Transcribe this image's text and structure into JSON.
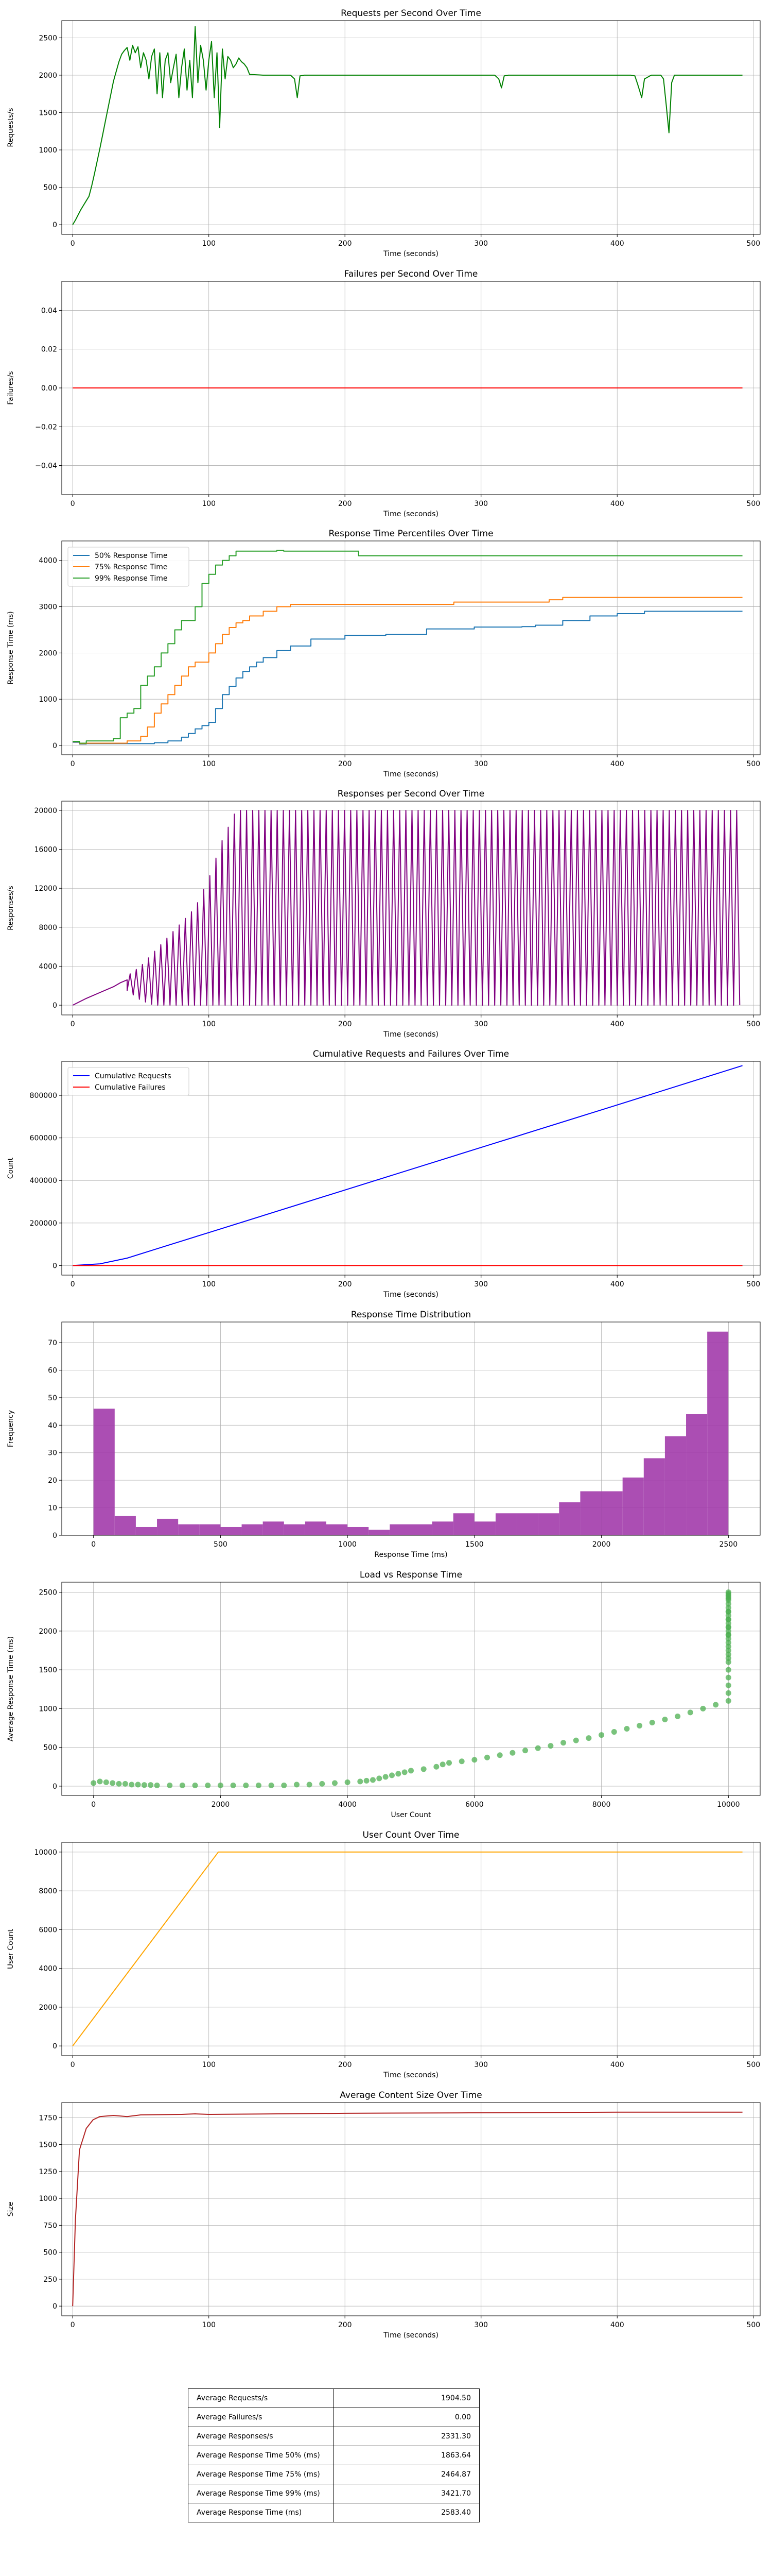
{
  "chart_data": [
    {
      "type": "line",
      "title": "Requests per Second Over Time",
      "xlabel": "Time (seconds)",
      "ylabel": "Requests/s",
      "xlim": [
        -8,
        505
      ],
      "ylim": [
        -130,
        2730
      ],
      "xticks": [
        0,
        100,
        200,
        300,
        400,
        500
      ],
      "yticks": [
        0,
        500,
        1000,
        1500,
        2000,
        2500
      ],
      "grid": true,
      "series": [
        {
          "color": "#008000",
          "x": [
            0,
            2,
            4,
            6,
            8,
            10,
            12,
            14,
            16,
            18,
            20,
            22,
            24,
            26,
            28,
            30,
            32,
            34,
            36,
            38,
            40,
            42,
            44,
            46,
            48,
            50,
            52,
            54,
            56,
            58,
            60,
            62,
            64,
            66,
            68,
            70,
            72,
            74,
            76,
            78,
            80,
            82,
            84,
            86,
            88,
            90,
            92,
            94,
            96,
            98,
            100,
            102,
            104,
            106,
            108,
            110,
            112,
            114,
            116,
            118,
            120,
            122,
            124,
            126,
            128,
            130,
            140,
            150,
            160,
            163,
            165,
            167,
            170,
            180,
            200,
            250,
            300,
            310,
            313,
            315,
            317,
            320,
            350,
            400,
            410,
            413,
            415,
            418,
            420,
            425,
            430,
            432,
            434,
            436,
            438,
            440,
            442,
            445,
            450,
            470,
            492
          ],
          "y": [
            0,
            60,
            130,
            200,
            260,
            320,
            380,
            520,
            680,
            850,
            1020,
            1200,
            1380,
            1560,
            1740,
            1920,
            2050,
            2180,
            2280,
            2330,
            2370,
            2200,
            2400,
            2300,
            2380,
            2100,
            2300,
            2200,
            1950,
            2250,
            2350,
            1750,
            2300,
            1700,
            2200,
            2300,
            1900,
            2100,
            2280,
            1700,
            2100,
            2350,
            1800,
            2200,
            1700,
            2650,
            1900,
            2400,
            2200,
            1800,
            2200,
            2450,
            1700,
            2300,
            1300,
            2350,
            1950,
            2250,
            2200,
            2100,
            2150,
            2230,
            2180,
            2150,
            2100,
            2010,
            2000,
            2000,
            2000,
            1950,
            1700,
            1990,
            2000,
            2000,
            2000,
            2000,
            2000,
            2000,
            1950,
            1830,
            1990,
            2000,
            2000,
            2000,
            2000,
            1990,
            1880,
            1700,
            1950,
            2000,
            2000,
            2000,
            1950,
            1600,
            1230,
            1900,
            2000,
            2000,
            2000,
            2000,
            2000
          ]
        }
      ]
    },
    {
      "type": "line",
      "title": "Failures per Second Over Time",
      "xlabel": "Time (seconds)",
      "ylabel": "Failures/s",
      "xlim": [
        -8,
        505
      ],
      "ylim": [
        -0.055,
        0.055
      ],
      "xticks": [
        0,
        100,
        200,
        300,
        400,
        500
      ],
      "yticks": [
        -0.04,
        -0.02,
        0.0,
        0.02,
        0.04
      ],
      "ytick_labels": [
        "−0.04",
        "−0.02",
        "0.00",
        "0.02",
        "0.04"
      ],
      "grid": true,
      "series": [
        {
          "color": "#ff0000",
          "x": [
            0,
            492
          ],
          "y": [
            0,
            0
          ]
        }
      ]
    },
    {
      "type": "line",
      "title": "Response Time Percentiles Over Time",
      "xlabel": "Time (seconds)",
      "ylabel": "Response Time (ms)",
      "xlim": [
        -8,
        505
      ],
      "ylim": [
        -200,
        4420
      ],
      "xticks": [
        0,
        100,
        200,
        300,
        400,
        500
      ],
      "yticks": [
        0,
        1000,
        2000,
        3000,
        4000
      ],
      "grid": true,
      "legend": "upper left",
      "step": true,
      "series": [
        {
          "name": "50% Response Time",
          "color": "#1f77b4",
          "x": [
            0,
            5,
            10,
            20,
            40,
            60,
            70,
            80,
            85,
            90,
            95,
            100,
            105,
            110,
            115,
            120,
            125,
            130,
            135,
            140,
            150,
            160,
            175,
            200,
            230,
            260,
            290,
            295,
            310,
            330,
            340,
            360,
            380,
            400,
            420,
            492
          ],
          "y": [
            70,
            30,
            40,
            40,
            40,
            60,
            100,
            180,
            260,
            360,
            430,
            500,
            800,
            1100,
            1280,
            1460,
            1600,
            1700,
            1800,
            1900,
            2050,
            2150,
            2300,
            2380,
            2400,
            2520,
            2520,
            2560,
            2560,
            2570,
            2600,
            2700,
            2800,
            2850,
            2900,
            2900
          ]
        },
        {
          "name": "75% Response Time",
          "color": "#ff7f0e",
          "x": [
            0,
            5,
            10,
            30,
            40,
            50,
            55,
            60,
            65,
            70,
            75,
            80,
            85,
            90,
            100,
            105,
            110,
            115,
            120,
            125,
            130,
            140,
            150,
            160,
            200,
            280,
            320,
            350,
            360,
            380,
            400,
            420,
            492
          ],
          "y": [
            80,
            40,
            50,
            50,
            100,
            200,
            400,
            700,
            900,
            1100,
            1300,
            1500,
            1700,
            1800,
            2000,
            2200,
            2400,
            2550,
            2650,
            2700,
            2800,
            2900,
            3000,
            3050,
            3050,
            3100,
            3100,
            3150,
            3200,
            3200,
            3200,
            3200,
            3200
          ]
        },
        {
          "name": "99% Response Time",
          "color": "#2ca02c",
          "x": [
            0,
            5,
            10,
            30,
            35,
            40,
            45,
            50,
            55,
            60,
            65,
            70,
            75,
            80,
            90,
            95,
            100,
            105,
            110,
            115,
            120,
            150,
            155,
            210,
            250,
            300,
            400,
            492
          ],
          "y": [
            90,
            50,
            100,
            150,
            600,
            700,
            800,
            1300,
            1500,
            1700,
            2000,
            2200,
            2500,
            2700,
            3000,
            3500,
            3700,
            3900,
            4000,
            4100,
            4200,
            4220,
            4200,
            4100,
            4100,
            4100,
            4100,
            4100
          ]
        }
      ]
    },
    {
      "type": "line",
      "title": "Responses per Second Over Time",
      "xlabel": "Time (seconds)",
      "ylabel": "Responses/s",
      "xlim": [
        -8,
        505
      ],
      "ylim": [
        -1000,
        20950
      ],
      "xticks": [
        0,
        100,
        200,
        300,
        400,
        500
      ],
      "yticks": [
        0,
        4000,
        8000,
        12000,
        16000,
        20000
      ],
      "ytick_labels": [
        "0",
        "4000",
        "8000",
        "12000",
        "16000",
        "20000"
      ],
      "grid": true,
      "oscillating": true,
      "series": [
        {
          "color": "#800080",
          "ramp_x": [
            0,
            10,
            20,
            30,
            35,
            40
          ],
          "ramp_y": [
            0,
            700,
            1300,
            1900,
            2300,
            2600
          ],
          "oscillation_start": 40,
          "oscillation_end": 492,
          "period_seconds": 4.5,
          "envelope_x": [
            40,
            50,
            60,
            70,
            80,
            90,
            100,
            110,
            120,
            492
          ],
          "envelope_peak": [
            3000,
            4000,
            5500,
            7000,
            8500,
            10000,
            13000,
            17000,
            20000,
            20000
          ],
          "envelope_trough": [
            1500,
            500,
            0,
            0,
            0,
            0,
            0,
            0,
            0,
            0
          ]
        }
      ]
    },
    {
      "type": "line",
      "title": "Cumulative Requests and Failures Over Time",
      "xlabel": "Time (seconds)",
      "ylabel": "Count",
      "xlim": [
        -8,
        505
      ],
      "ylim": [
        -45000,
        960000
      ],
      "xticks": [
        0,
        100,
        200,
        300,
        400,
        500
      ],
      "yticks": [
        0,
        200000,
        400000,
        600000,
        800000
      ],
      "grid": true,
      "legend": "upper left",
      "series": [
        {
          "name": "Cumulative Requests",
          "color": "#0000ff",
          "x": [
            0,
            20,
            40,
            60,
            80,
            100,
            200,
            300,
            400,
            492
          ],
          "y": [
            0,
            8000,
            35000,
            75000,
            115000,
            155000,
            355000,
            555000,
            755000,
            940000
          ]
        },
        {
          "name": "Cumulative Failures",
          "color": "#ff0000",
          "x": [
            0,
            492
          ],
          "y": [
            0,
            0
          ]
        }
      ]
    },
    {
      "type": "bar",
      "title": "Response Time Distribution",
      "xlabel": "Response Time (ms)",
      "ylabel": "Frequency",
      "xlim": [
        -125,
        2625
      ],
      "ylim": [
        0,
        77.5
      ],
      "xticks": [
        0,
        500,
        1000,
        1500,
        2000,
        2500
      ],
      "yticks": [
        0,
        10,
        20,
        30,
        40,
        50,
        60,
        70
      ],
      "grid": true,
      "color": "#a23bab",
      "bin_start": 0,
      "bin_width": 83.33,
      "values": [
        46,
        7,
        3,
        6,
        4,
        4,
        3,
        4,
        5,
        4,
        5,
        4,
        3,
        2,
        4,
        4,
        5,
        8,
        5,
        8,
        8,
        8,
        12,
        16,
        16,
        21,
        28,
        36,
        44,
        74
      ]
    },
    {
      "type": "scatter",
      "title": "Load vs Response Time",
      "xlabel": "User Count",
      "ylabel": "Average Response Time (ms)",
      "xlim": [
        -500,
        10500
      ],
      "ylim": [
        -120,
        2630
      ],
      "xticks": [
        0,
        2000,
        4000,
        6000,
        8000,
        10000
      ],
      "yticks": [
        0,
        500,
        1000,
        1500,
        2000,
        2500
      ],
      "grid": true,
      "color": "#4caf50",
      "x": [
        0,
        100,
        200,
        300,
        400,
        500,
        600,
        700,
        800,
        900,
        1000,
        1200,
        1400,
        1600,
        1800,
        2000,
        2200,
        2400,
        2600,
        2800,
        3000,
        3200,
        3400,
        3600,
        3800,
        4000,
        4200,
        4300,
        4400,
        4500,
        4600,
        4700,
        4800,
        4900,
        5000,
        5200,
        5400,
        5500,
        5600,
        5800,
        6000,
        6200,
        6400,
        6600,
        6800,
        7000,
        7200,
        7400,
        7600,
        7800,
        8000,
        8200,
        8400,
        8600,
        8800,
        9000,
        9200,
        9400,
        9600,
        9800,
        10000,
        10000,
        10000,
        10000,
        10000,
        10000,
        10000,
        10000,
        10000,
        10000,
        10000,
        10000,
        10000,
        10000,
        10000,
        10000,
        10000,
        10000,
        10000,
        10000,
        10000,
        10000,
        10000,
        10000,
        10000,
        10000,
        10000,
        10000,
        10000,
        10000,
        10000
      ],
      "y": [
        40,
        60,
        50,
        40,
        30,
        30,
        20,
        20,
        15,
        15,
        10,
        10,
        10,
        10,
        10,
        10,
        10,
        10,
        10,
        10,
        10,
        20,
        20,
        30,
        40,
        50,
        60,
        70,
        80,
        100,
        120,
        140,
        160,
        180,
        200,
        220,
        250,
        280,
        300,
        320,
        340,
        370,
        400,
        430,
        460,
        490,
        520,
        560,
        590,
        620,
        660,
        700,
        740,
        780,
        820,
        860,
        900,
        950,
        1000,
        1050,
        1100,
        1200,
        1300,
        1400,
        1500,
        1600,
        1700,
        1800,
        1850,
        1900,
        1950,
        2000,
        2050,
        2100,
        2150,
        2200,
        2250,
        2300,
        2350,
        2400,
        2420,
        2440,
        2460,
        2480,
        2500,
        2250,
        2150,
        2050,
        1950,
        1750,
        1650
      ]
    },
    {
      "type": "line",
      "title": "User Count Over Time",
      "xlabel": "Time (seconds)",
      "ylabel": "User Count",
      "xlim": [
        -8,
        505
      ],
      "ylim": [
        -500,
        10500
      ],
      "xticks": [
        0,
        100,
        200,
        300,
        400,
        500
      ],
      "yticks": [
        0,
        2000,
        4000,
        6000,
        8000,
        10000
      ],
      "grid": true,
      "series": [
        {
          "color": "#ffa500",
          "x": [
            0,
            107,
            492
          ],
          "y": [
            0,
            10000,
            10000
          ]
        }
      ]
    },
    {
      "type": "line",
      "title": "Average Content Size Over Time",
      "xlabel": "Time (seconds)",
      "ylabel": "Size",
      "xlim": [
        -8,
        505
      ],
      "ylim": [
        -90,
        1890
      ],
      "xticks": [
        0,
        100,
        200,
        300,
        400,
        500
      ],
      "yticks": [
        0,
        250,
        500,
        750,
        1000,
        1250,
        1500,
        1750
      ],
      "grid": true,
      "series": [
        {
          "color": "#b22222",
          "x": [
            0,
            2,
            5,
            10,
            15,
            20,
            30,
            40,
            50,
            80,
            90,
            100,
            150,
            200,
            300,
            400,
            492
          ],
          "y": [
            0,
            800,
            1450,
            1650,
            1730,
            1760,
            1770,
            1760,
            1775,
            1780,
            1785,
            1780,
            1785,
            1790,
            1795,
            1800,
            1800
          ]
        }
      ]
    }
  ],
  "summary_table": [
    {
      "label": "Average Requests/s",
      "value": "1904.50"
    },
    {
      "label": "Average Failures/s",
      "value": "0.00"
    },
    {
      "label": "Average Responses/s",
      "value": "2331.30"
    },
    {
      "label": "Average Response Time 50% (ms)",
      "value": "1863.64"
    },
    {
      "label": "Average Response Time 75% (ms)",
      "value": "2464.87"
    },
    {
      "label": "Average Response Time 99% (ms)",
      "value": "3421.70"
    },
    {
      "label": "Average Response Time (ms)",
      "value": "2583.40"
    }
  ]
}
